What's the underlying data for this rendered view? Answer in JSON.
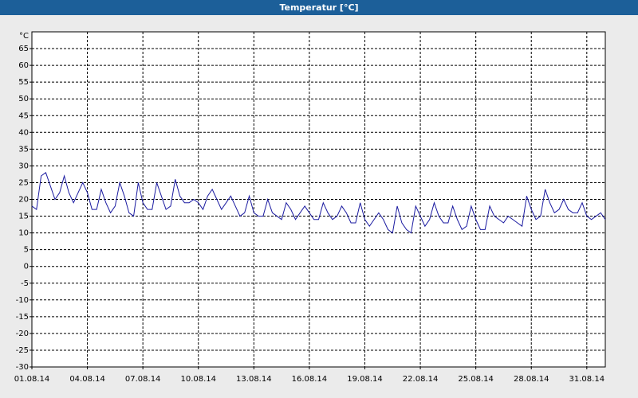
{
  "chart_data": {
    "type": "line",
    "title": "Temperatur [°C]",
    "y_unit": "°C",
    "x": [
      0,
      0.25,
      0.5,
      0.75,
      1,
      1.25,
      1.5,
      1.75,
      2,
      2.25,
      2.5,
      2.75,
      3,
      3.25,
      3.5,
      3.75,
      4,
      4.25,
      4.5,
      4.75,
      5,
      5.25,
      5.5,
      5.75,
      6,
      6.25,
      6.5,
      6.75,
      7,
      7.25,
      7.5,
      7.75,
      8,
      8.25,
      8.5,
      8.75,
      9,
      9.25,
      9.5,
      9.75,
      10,
      10.25,
      10.5,
      10.75,
      11,
      11.25,
      11.5,
      11.75,
      12,
      12.25,
      12.5,
      12.75,
      13,
      13.25,
      13.5,
      13.75,
      14,
      14.25,
      14.5,
      14.75,
      15,
      15.25,
      15.5,
      15.75,
      16,
      16.25,
      16.5,
      16.75,
      17,
      17.25,
      17.5,
      17.75,
      18,
      18.25,
      18.5,
      18.75,
      19,
      19.25,
      19.5,
      19.75,
      20,
      20.25,
      20.5,
      20.75,
      21,
      21.25,
      21.5,
      21.75,
      22,
      22.25,
      22.5,
      22.75,
      23,
      23.25,
      23.5,
      23.75,
      24,
      24.25,
      24.5,
      24.75,
      25,
      25.25,
      25.5,
      25.75,
      26,
      26.25,
      26.5,
      26.75,
      27,
      27.25,
      27.5,
      27.75,
      28,
      28.25,
      28.5,
      28.75,
      29,
      29.25,
      29.5,
      29.75,
      30,
      30.25,
      30.5,
      30.75,
      31
    ],
    "series": [
      {
        "name": "Temperatur",
        "color": "#1a1aa0",
        "values": [
          18,
          17,
          27,
          28,
          24,
          20,
          22,
          27,
          22,
          19,
          22,
          25,
          22,
          17,
          17,
          23,
          19,
          16,
          18,
          25,
          21,
          16,
          15,
          25,
          19,
          17,
          17,
          25,
          21,
          17,
          18,
          26,
          21,
          19,
          19,
          20,
          19,
          17,
          21,
          23,
          20,
          17,
          19,
          21,
          18,
          15,
          16,
          21,
          16,
          15,
          15,
          20,
          16,
          15,
          14,
          19,
          17,
          14,
          16,
          18,
          16,
          14,
          14,
          19,
          16,
          14,
          15,
          18,
          16,
          13,
          13,
          19,
          14,
          12,
          14,
          16,
          14,
          11,
          10,
          18,
          13,
          11,
          10,
          18,
          15,
          12,
          14,
          19,
          15,
          13,
          13,
          18,
          14,
          11,
          12,
          18,
          14,
          11,
          11,
          18,
          15,
          14,
          13,
          15,
          14,
          13,
          12,
          21,
          17,
          14,
          15,
          23,
          19,
          16,
          17,
          20,
          17,
          16,
          16,
          19,
          15,
          14,
          15,
          16,
          14
        ]
      }
    ],
    "xlim": [
      0,
      31
    ],
    "xticks": [
      {
        "value": 0,
        "label": "01.08.14"
      },
      {
        "value": 3,
        "label": "04.08.14"
      },
      {
        "value": 6,
        "label": "07.08.14"
      },
      {
        "value": 9,
        "label": "10.08.14"
      },
      {
        "value": 12,
        "label": "13.08.14"
      },
      {
        "value": 15,
        "label": "16.08.14"
      },
      {
        "value": 18,
        "label": "19.08.14"
      },
      {
        "value": 21,
        "label": "22.08.14"
      },
      {
        "value": 24,
        "label": "25.08.14"
      },
      {
        "value": 27,
        "label": "28.08.14"
      },
      {
        "value": 30,
        "label": "31.08.14"
      }
    ],
    "ylim": [
      -30,
      70
    ],
    "yticks": [
      -30,
      -25,
      -20,
      -15,
      -10,
      -5,
      0,
      5,
      10,
      15,
      20,
      25,
      30,
      35,
      40,
      45,
      50,
      55,
      60,
      65
    ],
    "grid": true
  }
}
